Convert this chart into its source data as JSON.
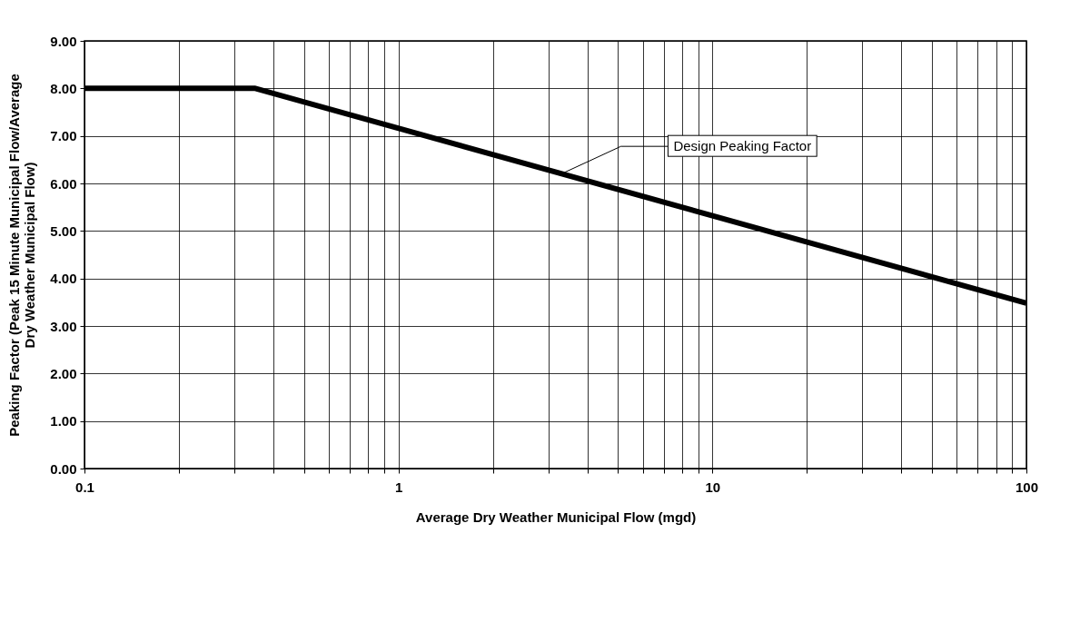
{
  "chart_data": {
    "type": "line",
    "xlabel": "Average Dry Weather Municipal Flow (mgd)",
    "ylabel": "Peaking Factor (Peak 15 Minute Municipal Flow/Average Dry Weather Municipal Flow)",
    "log": "x",
    "grid": true,
    "marker": "none",
    "line_style": "solid",
    "series": [
      {
        "color": "#000000",
        "x": [
          0.1,
          0.35,
          100
        ],
        "values": [
          8,
          8,
          3.48
        ]
      }
    ],
    "xlim": [
      0.1,
      100
    ],
    "xticks": [
      0.1,
      {
        "value": 0.2,
        "label": null
      },
      {
        "value": 0.3,
        "label": null
      },
      {
        "value": 0.4,
        "label": null
      },
      {
        "value": 0.5,
        "label": null
      },
      {
        "value": 0.6,
        "label": null
      },
      {
        "value": 0.7,
        "label": null
      },
      {
        "value": 0.8,
        "label": null
      },
      {
        "value": 0.9,
        "label": null
      },
      1,
      {
        "value": 2,
        "label": null
      },
      {
        "value": 3,
        "label": null
      },
      {
        "value": 4,
        "label": null
      },
      {
        "value": 5,
        "label": null
      },
      {
        "value": 6,
        "label": null
      },
      {
        "value": 7,
        "label": null
      },
      {
        "value": 8,
        "label": null
      },
      {
        "value": 9,
        "label": null
      },
      10,
      {
        "value": 20,
        "label": null
      },
      {
        "value": 30,
        "label": null
      },
      {
        "value": 40,
        "label": null
      },
      {
        "value": 50,
        "label": null
      },
      {
        "value": 60,
        "label": null
      },
      {
        "value": 70,
        "label": null
      },
      {
        "value": 80,
        "label": null
      },
      {
        "value": 90,
        "label": null
      },
      100
    ],
    "ylim": [
      0,
      9
    ],
    "yticks": [
      {
        "value": 0,
        "label": "0.00"
      },
      {
        "value": 1,
        "label": "1.00"
      },
      {
        "value": 2,
        "label": "2.00"
      },
      {
        "value": 3,
        "label": "3.00"
      },
      {
        "value": 4,
        "label": "4.00"
      },
      {
        "value": 5,
        "label": "5.00"
      },
      {
        "value": 6,
        "label": "6.00"
      },
      {
        "value": 7,
        "label": "7.00"
      },
      {
        "value": 8,
        "label": "8.00"
      },
      {
        "value": 9,
        "label": "9.00"
      }
    ],
    "annotations": [
      {
        "text": "Design Peaking Factor",
        "x": 3.3,
        "y": 6.2
      }
    ]
  }
}
